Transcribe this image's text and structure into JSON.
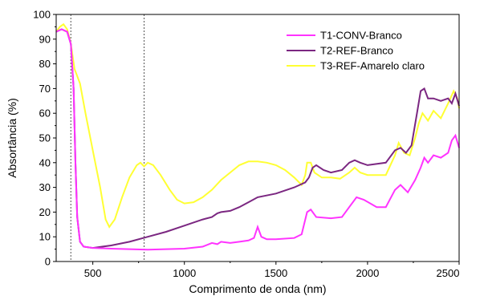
{
  "chart_data": {
    "type": "line",
    "xlabel": "Comprimento de onda (nm)",
    "ylabel": "Absortância (%)",
    "xlim": [
      300,
      2500
    ],
    "ylim": [
      0,
      100
    ],
    "xticks": [
      500,
      1000,
      1500,
      2000,
      2500
    ],
    "yticks": [
      0,
      10,
      20,
      30,
      40,
      50,
      60,
      70,
      80,
      90,
      100
    ],
    "grid": false,
    "legend": "top-right",
    "reference_lines": [
      {
        "x": 380,
        "style": "dotted"
      },
      {
        "x": 780,
        "style": "dotted"
      }
    ],
    "series": [
      {
        "name": "T1-CONV-Branco",
        "color": "#ff33ff",
        "points": [
          [
            300,
            93
          ],
          [
            330,
            94
          ],
          [
            360,
            93
          ],
          [
            380,
            88
          ],
          [
            395,
            70
          ],
          [
            405,
            40
          ],
          [
            415,
            18
          ],
          [
            430,
            8
          ],
          [
            450,
            6
          ],
          [
            500,
            5.5
          ],
          [
            600,
            5.2
          ],
          [
            700,
            5
          ],
          [
            800,
            4.8
          ],
          [
            900,
            5
          ],
          [
            1000,
            5.2
          ],
          [
            1100,
            6
          ],
          [
            1150,
            7.5
          ],
          [
            1180,
            7
          ],
          [
            1200,
            8
          ],
          [
            1250,
            7.5
          ],
          [
            1300,
            8
          ],
          [
            1350,
            8.5
          ],
          [
            1380,
            9.5
          ],
          [
            1400,
            14
          ],
          [
            1420,
            10
          ],
          [
            1450,
            9
          ],
          [
            1500,
            9
          ],
          [
            1600,
            9.5
          ],
          [
            1640,
            11
          ],
          [
            1670,
            20
          ],
          [
            1690,
            21
          ],
          [
            1720,
            18
          ],
          [
            1800,
            17.5
          ],
          [
            1860,
            18
          ],
          [
            1900,
            22
          ],
          [
            1940,
            26
          ],
          [
            1980,
            25
          ],
          [
            2050,
            22
          ],
          [
            2100,
            22
          ],
          [
            2150,
            29
          ],
          [
            2180,
            31
          ],
          [
            2220,
            28
          ],
          [
            2260,
            33
          ],
          [
            2290,
            38
          ],
          [
            2310,
            42
          ],
          [
            2330,
            40
          ],
          [
            2360,
            43
          ],
          [
            2400,
            42
          ],
          [
            2440,
            44
          ],
          [
            2460,
            49
          ],
          [
            2480,
            51
          ],
          [
            2500,
            46
          ]
        ]
      },
      {
        "name": "T2-REF-Branco",
        "color": "#7b2781",
        "points": [
          [
            300,
            93
          ],
          [
            330,
            94
          ],
          [
            360,
            93
          ],
          [
            380,
            88
          ],
          [
            395,
            70
          ],
          [
            405,
            40
          ],
          [
            415,
            18
          ],
          [
            430,
            8
          ],
          [
            450,
            6
          ],
          [
            500,
            5.5
          ],
          [
            600,
            6.5
          ],
          [
            700,
            8
          ],
          [
            800,
            10
          ],
          [
            900,
            12
          ],
          [
            1000,
            14.5
          ],
          [
            1100,
            17
          ],
          [
            1150,
            18
          ],
          [
            1180,
            19.5
          ],
          [
            1200,
            20
          ],
          [
            1250,
            20.5
          ],
          [
            1300,
            22
          ],
          [
            1350,
            24
          ],
          [
            1400,
            26
          ],
          [
            1500,
            27.5
          ],
          [
            1600,
            30
          ],
          [
            1660,
            32
          ],
          [
            1680,
            34
          ],
          [
            1700,
            38
          ],
          [
            1720,
            39
          ],
          [
            1760,
            37
          ],
          [
            1800,
            36
          ],
          [
            1860,
            37
          ],
          [
            1900,
            40
          ],
          [
            1930,
            41
          ],
          [
            1960,
            40
          ],
          [
            2000,
            39
          ],
          [
            2100,
            40
          ],
          [
            2150,
            45
          ],
          [
            2180,
            46
          ],
          [
            2210,
            44
          ],
          [
            2240,
            47
          ],
          [
            2270,
            60
          ],
          [
            2290,
            69
          ],
          [
            2310,
            70
          ],
          [
            2330,
            66
          ],
          [
            2360,
            66
          ],
          [
            2400,
            65
          ],
          [
            2440,
            66
          ],
          [
            2460,
            64
          ],
          [
            2480,
            68
          ],
          [
            2500,
            63
          ]
        ]
      },
      {
        "name": "T3-REF-Amarelo claro",
        "color": "#ffff33",
        "points": [
          [
            300,
            93
          ],
          [
            320,
            95
          ],
          [
            340,
            96
          ],
          [
            360,
            94
          ],
          [
            380,
            88
          ],
          [
            400,
            78
          ],
          [
            430,
            72
          ],
          [
            460,
            60
          ],
          [
            500,
            45
          ],
          [
            540,
            30
          ],
          [
            570,
            17
          ],
          [
            590,
            14
          ],
          [
            620,
            17
          ],
          [
            660,
            26
          ],
          [
            700,
            34
          ],
          [
            740,
            39
          ],
          [
            760,
            40
          ],
          [
            780,
            38.5
          ],
          [
            800,
            40
          ],
          [
            830,
            39
          ],
          [
            870,
            35
          ],
          [
            920,
            29
          ],
          [
            960,
            25
          ],
          [
            1000,
            23.5
          ],
          [
            1050,
            24
          ],
          [
            1100,
            26
          ],
          [
            1150,
            29
          ],
          [
            1200,
            33
          ],
          [
            1250,
            36
          ],
          [
            1300,
            39
          ],
          [
            1350,
            40.5
          ],
          [
            1400,
            40.5
          ],
          [
            1450,
            40
          ],
          [
            1500,
            39
          ],
          [
            1550,
            37
          ],
          [
            1600,
            34
          ],
          [
            1640,
            31
          ],
          [
            1660,
            35
          ],
          [
            1670,
            40
          ],
          [
            1690,
            40
          ],
          [
            1710,
            36
          ],
          [
            1750,
            34
          ],
          [
            1800,
            34
          ],
          [
            1850,
            33.5
          ],
          [
            1900,
            36
          ],
          [
            1930,
            38
          ],
          [
            1960,
            36
          ],
          [
            2000,
            35
          ],
          [
            2100,
            35
          ],
          [
            2150,
            43
          ],
          [
            2170,
            48
          ],
          [
            2200,
            44
          ],
          [
            2230,
            43
          ],
          [
            2260,
            50
          ],
          [
            2280,
            56
          ],
          [
            2300,
            60
          ],
          [
            2330,
            57
          ],
          [
            2360,
            61
          ],
          [
            2400,
            58
          ],
          [
            2440,
            64
          ],
          [
            2470,
            69
          ],
          [
            2490,
            66
          ],
          [
            2500,
            62
          ]
        ]
      }
    ]
  }
}
